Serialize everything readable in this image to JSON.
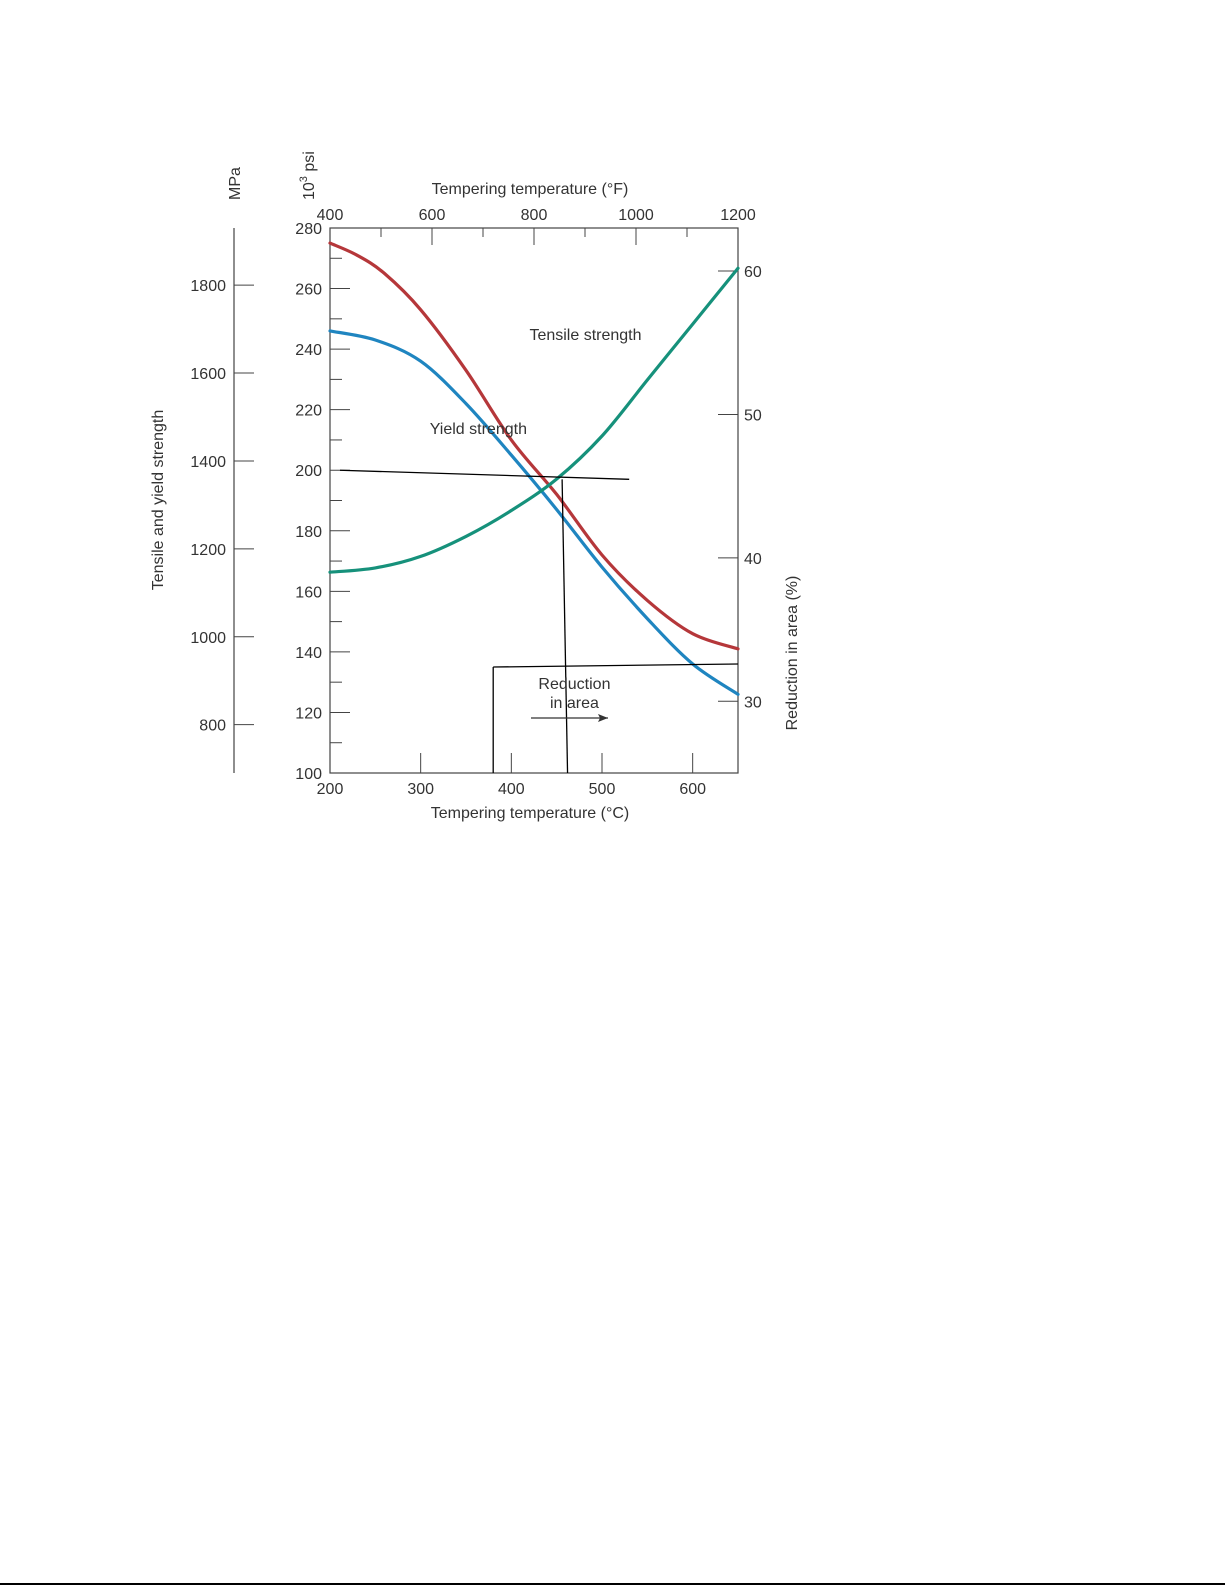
{
  "chart_data": {
    "type": "line",
    "x_bottom": {
      "label": "Tempering temperature (°C)",
      "range": [
        200,
        650
      ],
      "ticks": [
        200,
        300,
        400,
        500,
        600
      ]
    },
    "x_top": {
      "label": "Tempering temperature (°F)",
      "range": [
        400,
        1200
      ],
      "ticks": [
        400,
        600,
        800,
        1000,
        1200
      ]
    },
    "y_left_psi": {
      "label": "10³ psi",
      "label_base": "10",
      "label_exp": "3",
      "label_unit": "psi",
      "range": [
        100,
        280
      ],
      "ticks": [
        100,
        120,
        140,
        160,
        180,
        200,
        220,
        240,
        260,
        280
      ]
    },
    "y_left_mpa": {
      "label": "MPa",
      "title": "Tensile and yield strength",
      "range": [
        690,
        1930
      ],
      "ticks": [
        800,
        1000,
        1200,
        1400,
        1600,
        1800
      ]
    },
    "y_right": {
      "label": "Reduction in area (%)",
      "range": [
        25,
        63
      ],
      "ticks": [
        30,
        40,
        50,
        60
      ]
    },
    "series": [
      {
        "name": "Tensile strength",
        "axis": "psi",
        "color": "#b5373a",
        "x": [
          200,
          230,
          260,
          300,
          350,
          400,
          450,
          500,
          550,
          600,
          650
        ],
        "y": [
          275,
          271,
          265,
          253,
          233,
          210,
          192,
          172,
          157,
          146,
          141
        ]
      },
      {
        "name": "Yield strength",
        "axis": "psi",
        "color": "#1f85c0",
        "x": [
          200,
          250,
          300,
          350,
          400,
          450,
          500,
          550,
          600,
          650
        ],
        "y": [
          246,
          243,
          236,
          222,
          205,
          187,
          168,
          151,
          136,
          126
        ]
      },
      {
        "name": "Reduction in area",
        "axis": "right",
        "color": "#16917b",
        "x": [
          200,
          250,
          300,
          350,
          400,
          450,
          500,
          550,
          600,
          650
        ],
        "y": [
          39,
          39.3,
          40.1,
          41.5,
          43.3,
          45.5,
          48.5,
          52.4,
          56.3,
          60.2
        ]
      }
    ],
    "annotations": [
      {
        "text": "Tensile strength",
        "x": 420,
        "y": 243
      },
      {
        "text": "Yield strength",
        "x": 310,
        "y": 212
      },
      {
        "text_line1": "Reduction",
        "text_line2": "in area",
        "x": 463,
        "y": 128
      }
    ],
    "guide_lines": [
      {
        "x1": 211,
        "y1": 200,
        "x2": 530,
        "y2": 197
      },
      {
        "x1": 456,
        "y1": 197,
        "x2": 462,
        "y2": 100
      },
      {
        "x1": 380,
        "y1": 135,
        "x2": 650,
        "y2": 136
      },
      {
        "x1": 380,
        "y1": 135,
        "x2": 380,
        "y2": 100
      }
    ]
  }
}
